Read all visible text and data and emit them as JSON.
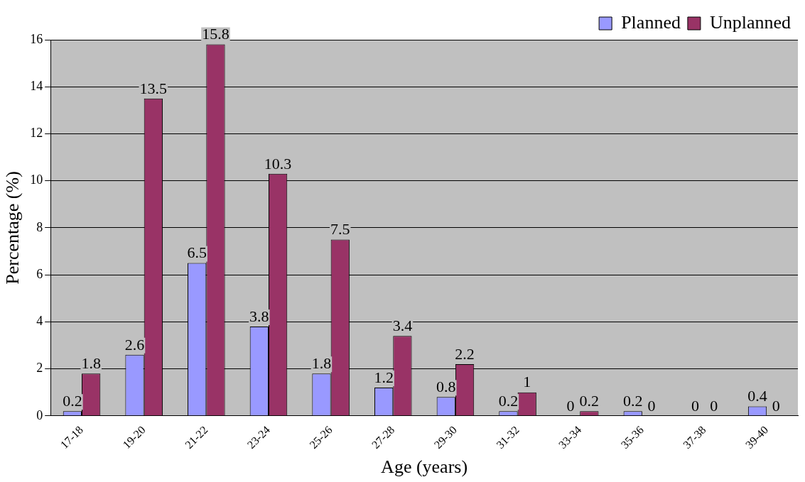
{
  "chart_data": {
    "type": "bar",
    "xlabel": "Age (years)",
    "ylabel": "Percentage (%)",
    "categories": [
      "17-18",
      "19-20",
      "21-22",
      "23-24",
      "25-26",
      "27-28",
      "29-30",
      "31-32",
      "33-34",
      "35-36",
      "37-38",
      "39-40"
    ],
    "series": [
      {
        "name": "Planned",
        "color": "#9999ff",
        "values": [
          0.2,
          2.6,
          6.5,
          3.8,
          1.8,
          1.2,
          0.8,
          0.2,
          0,
          0.2,
          0,
          0.4
        ]
      },
      {
        "name": "Unplanned",
        "color": "#993366",
        "values": [
          1.8,
          13.5,
          15.8,
          10.3,
          7.5,
          3.4,
          2.2,
          1,
          0.2,
          0,
          0,
          0
        ]
      }
    ],
    "ylim": [
      0,
      16
    ],
    "yticks": [
      0,
      2,
      4,
      6,
      8,
      10,
      12,
      14,
      16
    ],
    "grid": "y",
    "legend": "top right",
    "data_labels": true
  }
}
